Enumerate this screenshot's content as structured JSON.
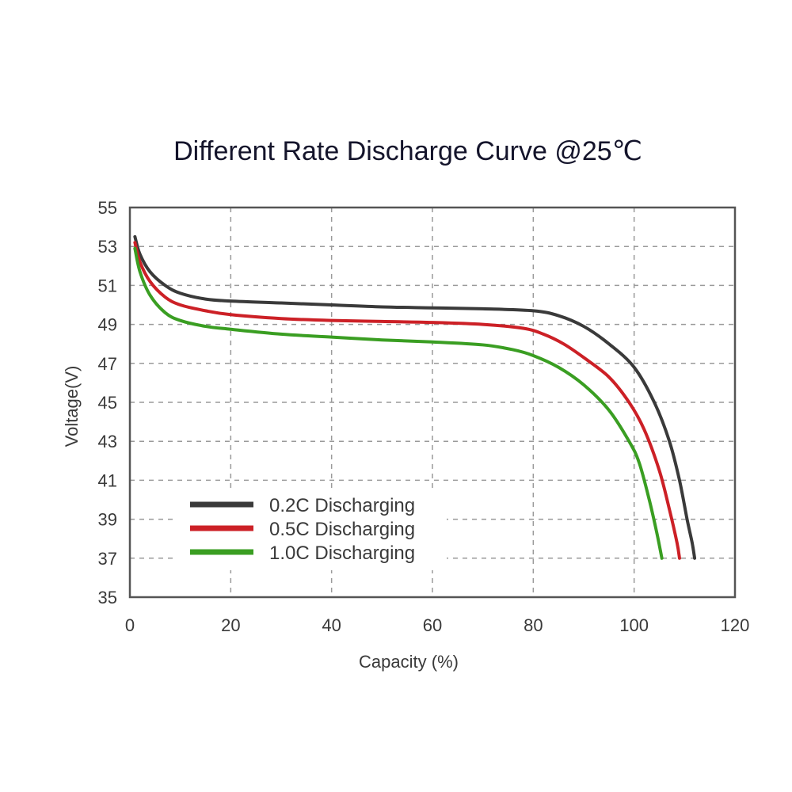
{
  "chart_data": {
    "type": "line",
    "title": "Different Rate Discharge Curve @25℃",
    "xlabel": "Capacity (%)",
    "ylabel": "Voltage(V)",
    "xlim": [
      0,
      120
    ],
    "ylim": [
      35,
      55
    ],
    "xticks": [
      "0",
      "20",
      "40",
      "60",
      "80",
      "100",
      "120"
    ],
    "yticks": [
      "35",
      "37",
      "39",
      "41",
      "43",
      "45",
      "47",
      "49",
      "51",
      "53",
      "55"
    ],
    "grid": true,
    "legend_position": "bottom-left",
    "series": [
      {
        "name": "0.2C Discharging",
        "color": "#3a3a3a",
        "points": [
          [
            1,
            53.5
          ],
          [
            2,
            52.6
          ],
          [
            4,
            51.7
          ],
          [
            7,
            51.0
          ],
          [
            10,
            50.6
          ],
          [
            15,
            50.3
          ],
          [
            20,
            50.2
          ],
          [
            30,
            50.1
          ],
          [
            40,
            50.0
          ],
          [
            50,
            49.9
          ],
          [
            60,
            49.85
          ],
          [
            70,
            49.8
          ],
          [
            80,
            49.7
          ],
          [
            85,
            49.45
          ],
          [
            90,
            48.9
          ],
          [
            95,
            48.0
          ],
          [
            100,
            46.8
          ],
          [
            104,
            45.0
          ],
          [
            107,
            43.0
          ],
          [
            109,
            41.0
          ],
          [
            110.5,
            39.0
          ],
          [
            111.5,
            37.8
          ],
          [
            112,
            37.0
          ]
        ]
      },
      {
        "name": "0.5C Discharging",
        "color": "#cc2026",
        "points": [
          [
            1,
            53.2
          ],
          [
            2,
            52.2
          ],
          [
            4,
            51.2
          ],
          [
            7,
            50.4
          ],
          [
            10,
            50.0
          ],
          [
            15,
            49.7
          ],
          [
            20,
            49.5
          ],
          [
            30,
            49.3
          ],
          [
            40,
            49.2
          ],
          [
            50,
            49.15
          ],
          [
            60,
            49.1
          ],
          [
            70,
            49.0
          ],
          [
            78,
            48.8
          ],
          [
            82,
            48.5
          ],
          [
            86,
            48.0
          ],
          [
            90,
            47.3
          ],
          [
            95,
            46.3
          ],
          [
            99,
            45.0
          ],
          [
            102,
            43.6
          ],
          [
            105,
            41.5
          ],
          [
            107,
            39.5
          ],
          [
            108.5,
            37.8
          ],
          [
            109,
            37.0
          ]
        ]
      },
      {
        "name": "1.0C Discharging",
        "color": "#3a9e22",
        "points": [
          [
            1,
            52.9
          ],
          [
            2,
            51.7
          ],
          [
            4,
            50.5
          ],
          [
            7,
            49.6
          ],
          [
            10,
            49.2
          ],
          [
            15,
            48.9
          ],
          [
            20,
            48.75
          ],
          [
            30,
            48.5
          ],
          [
            40,
            48.35
          ],
          [
            50,
            48.2
          ],
          [
            60,
            48.1
          ],
          [
            70,
            47.95
          ],
          [
            76,
            47.7
          ],
          [
            80,
            47.4
          ],
          [
            85,
            46.8
          ],
          [
            90,
            45.9
          ],
          [
            95,
            44.6
          ],
          [
            99,
            43.0
          ],
          [
            101,
            41.9
          ],
          [
            103,
            40.0
          ],
          [
            104.5,
            38.3
          ],
          [
            105.5,
            37.0
          ]
        ]
      }
    ]
  }
}
